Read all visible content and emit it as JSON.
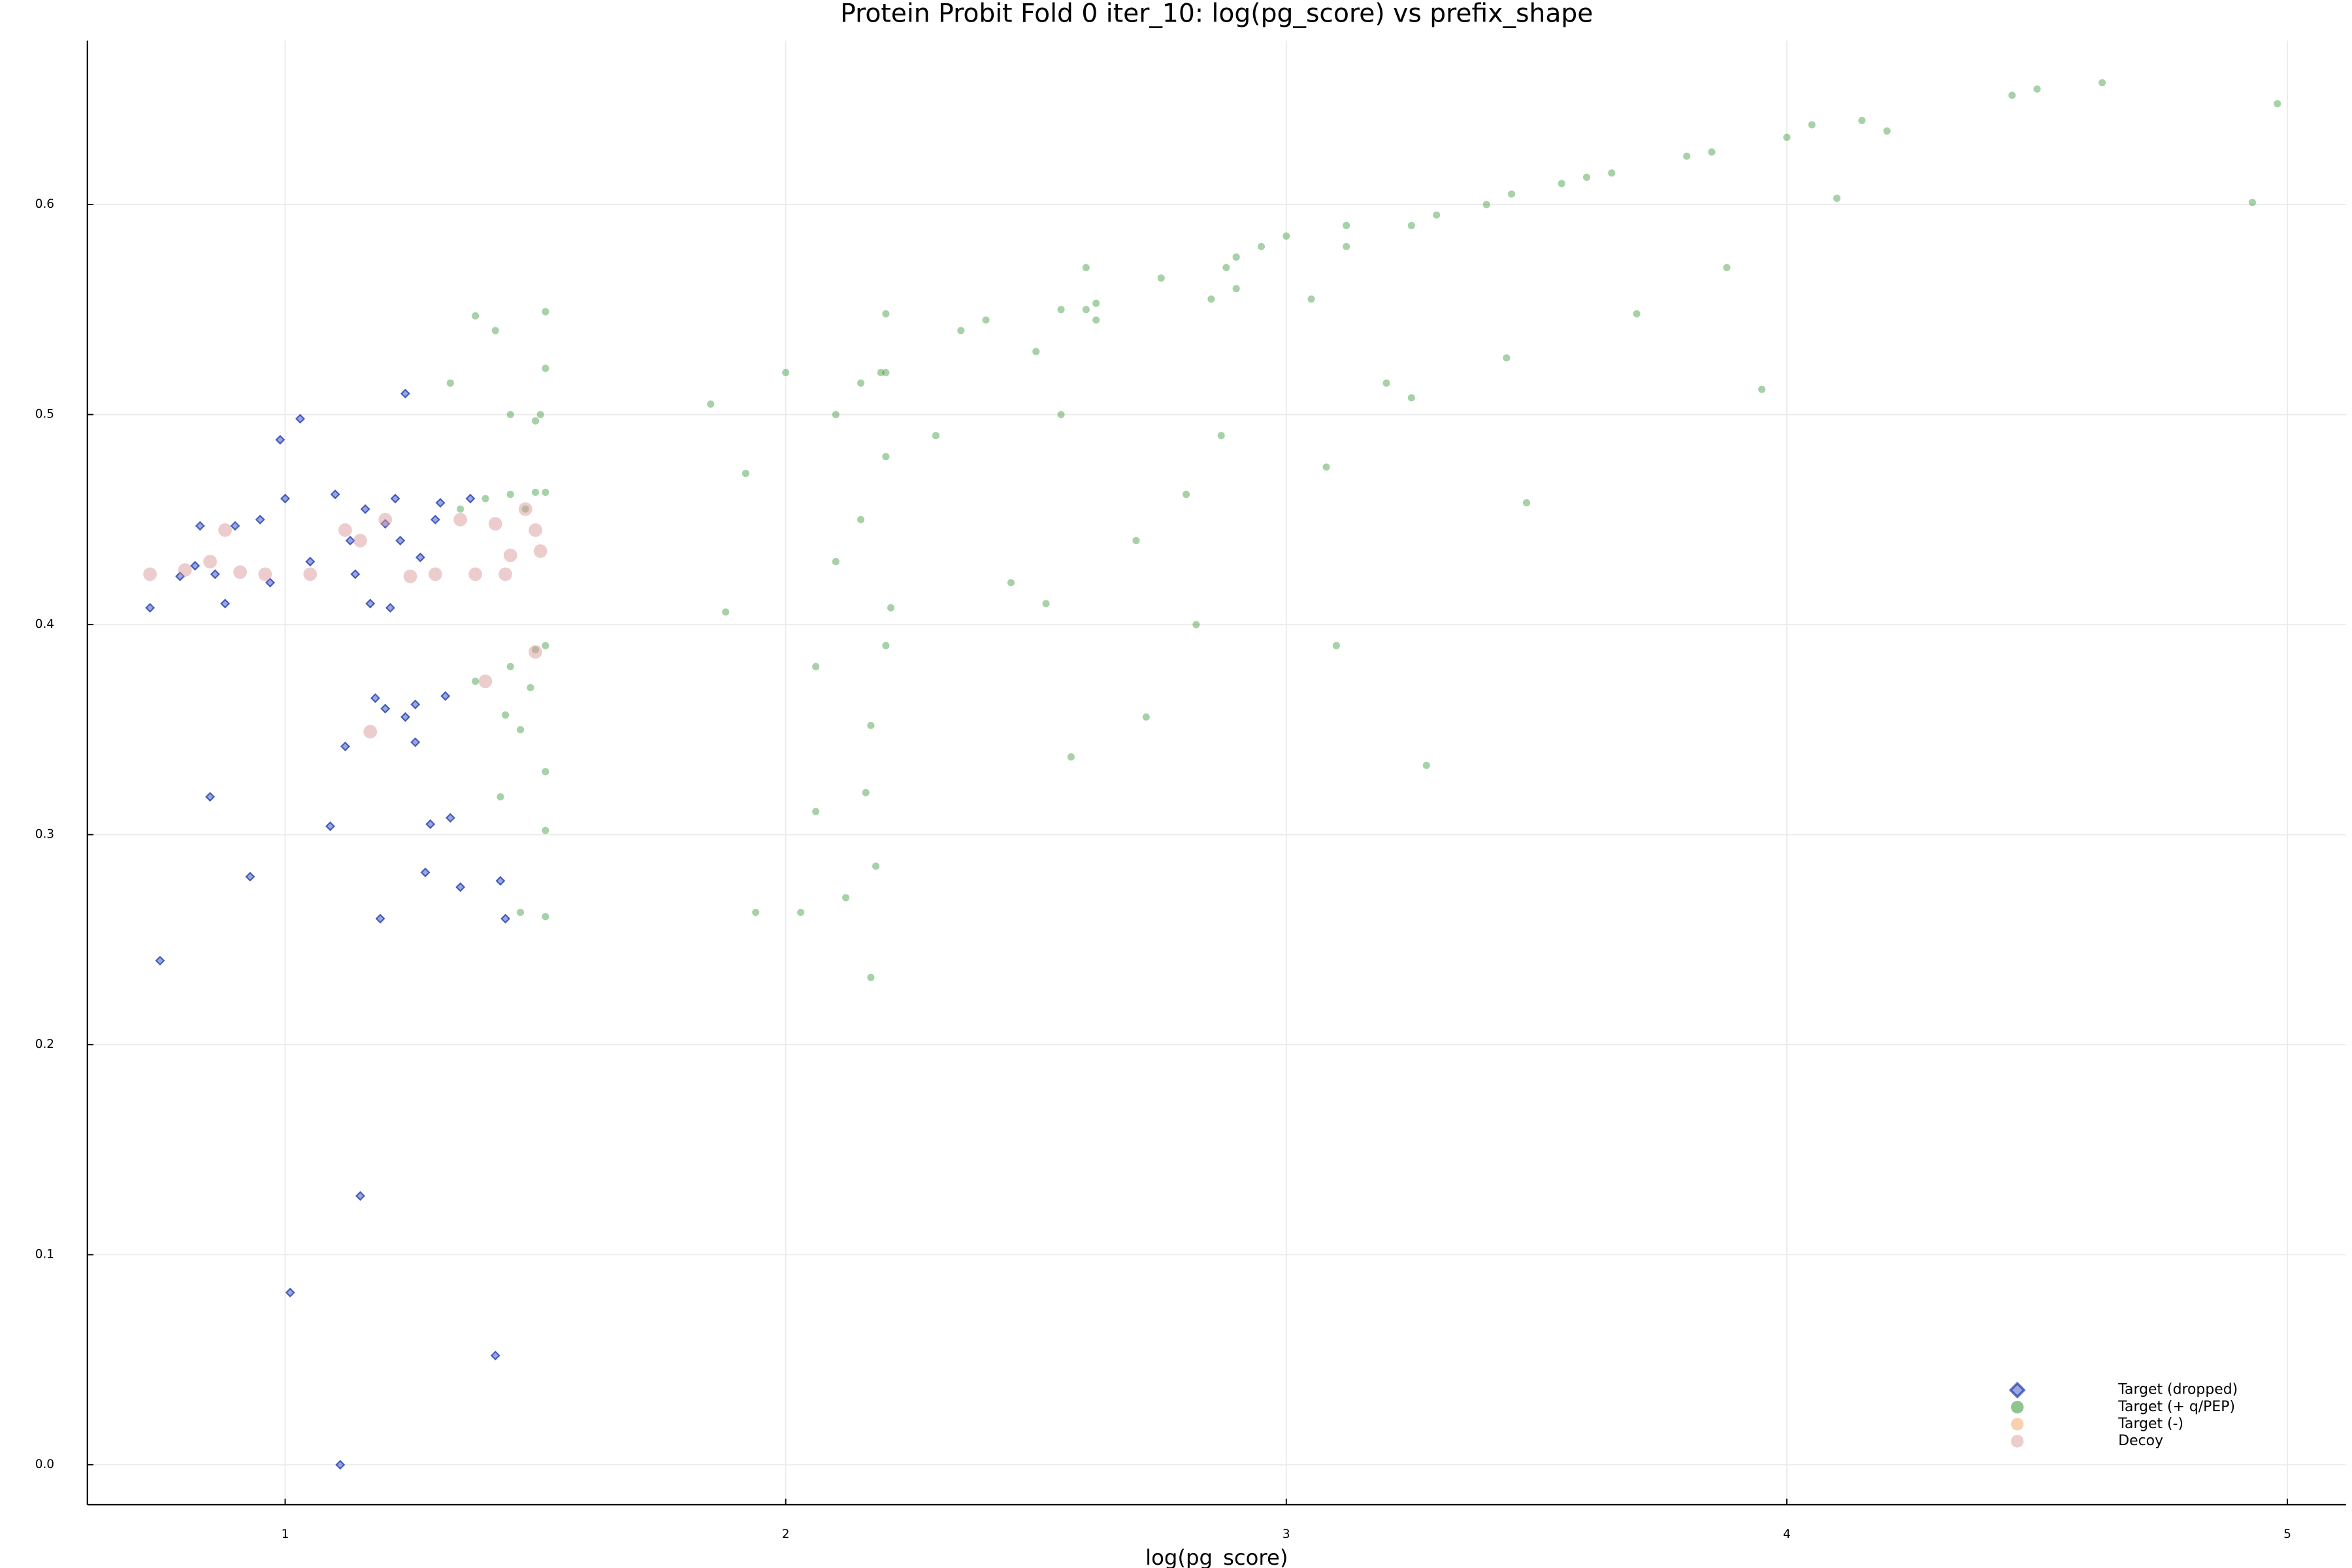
{
  "chart_data": {
    "type": "scatter",
    "title": "Protein Probit Fold 0 iter_10: log(pg_score) vs prefix_shape",
    "x_label": "log(pg_score)",
    "xlim": [
      0.605,
      5.117
    ],
    "ylim": [
      -0.019,
      0.678
    ],
    "xticks": [
      1,
      2,
      3,
      4,
      5
    ],
    "yticks": [
      {
        "value": 0,
        "label": "0.0"
      },
      0.1,
      0.2,
      0.3,
      0.4,
      0.5,
      0.6
    ],
    "grid": true,
    "legend": "bottom-right",
    "series": [
      {
        "name": "Target (dropped)",
        "color": "#1f3bb3",
        "marker": "diamond",
        "x": [
          0.73,
          0.75,
          0.79,
          0.82,
          0.83,
          0.85,
          0.86,
          0.88,
          0.9,
          0.93,
          0.95,
          0.97,
          0.99,
          1.01,
          1.03,
          1.0,
          1.05,
          1.09,
          1.1,
          1.11,
          1.12,
          1.13,
          1.15,
          1.16,
          1.18,
          1.19,
          1.2,
          1.22,
          1.24,
          1.24,
          1.26,
          1.27,
          1.28,
          1.29,
          1.3,
          1.32,
          1.33,
          1.35,
          1.37,
          1.42,
          1.43,
          1.44,
          1.2,
          1.26,
          1.14,
          1.31,
          1.23,
          1.17,
          1.21
        ],
        "y": [
          0.408,
          0.24,
          0.423,
          0.428,
          0.447,
          0.318,
          0.424,
          0.41,
          0.447,
          0.28,
          0.45,
          0.42,
          0.488,
          0.082,
          0.498,
          0.46,
          0.43,
          0.304,
          0.462,
          0.0,
          0.342,
          0.44,
          0.128,
          0.455,
          0.365,
          0.26,
          0.448,
          0.46,
          0.356,
          0.51,
          0.344,
          0.432,
          0.282,
          0.305,
          0.45,
          0.366,
          0.308,
          0.275,
          0.46,
          0.052,
          0.278,
          0.26,
          0.36,
          0.362,
          0.424,
          0.458,
          0.44,
          0.41,
          0.408
        ]
      },
      {
        "name": "Target (+ q/PEP)",
        "color": "#228b22",
        "marker": "circle",
        "x": [
          1.33,
          1.38,
          1.42,
          1.52,
          1.52,
          1.51,
          1.5,
          1.45,
          1.4,
          1.45,
          1.5,
          1.52,
          1.35,
          1.48,
          1.38,
          1.45,
          1.5,
          1.52,
          1.49,
          1.44,
          1.47,
          1.43,
          1.52,
          1.47,
          1.52,
          1.52,
          1.85,
          1.88,
          1.92,
          1.94,
          2.0,
          2.03,
          2.06,
          2.06,
          2.1,
          2.12,
          2.15,
          2.16,
          2.17,
          2.18,
          2.17,
          2.2,
          2.2,
          2.2,
          2.21,
          2.2,
          2.19,
          2.15,
          2.1,
          2.3,
          2.35,
          2.4,
          2.45,
          2.5,
          2.55,
          2.57,
          2.6,
          2.62,
          2.6,
          2.62,
          2.55,
          2.52,
          2.7,
          2.72,
          2.75,
          2.8,
          2.82,
          2.85,
          2.88,
          2.9,
          2.87,
          2.9,
          2.95,
          3.0,
          3.05,
          3.08,
          3.1,
          3.12,
          3.12,
          3.2,
          3.25,
          3.3,
          3.28,
          3.25,
          3.4,
          3.45,
          3.44,
          3.48,
          3.55,
          3.6,
          3.65,
          3.7,
          3.8,
          3.85,
          3.88,
          3.95,
          4.0,
          4.05,
          4.1,
          4.15,
          4.2,
          4.45,
          4.5,
          4.63,
          4.93,
          4.98
        ],
        "y": [
          0.515,
          0.547,
          0.54,
          0.549,
          0.522,
          0.5,
          0.497,
          0.5,
          0.46,
          0.462,
          0.463,
          0.463,
          0.455,
          0.455,
          0.373,
          0.38,
          0.388,
          0.39,
          0.37,
          0.357,
          0.35,
          0.318,
          0.302,
          0.263,
          0.261,
          0.33,
          0.505,
          0.406,
          0.472,
          0.263,
          0.52,
          0.263,
          0.38,
          0.311,
          0.5,
          0.27,
          0.515,
          0.32,
          0.352,
          0.285,
          0.232,
          0.52,
          0.548,
          0.48,
          0.408,
          0.39,
          0.52,
          0.45,
          0.43,
          0.49,
          0.54,
          0.545,
          0.42,
          0.53,
          0.55,
          0.337,
          0.55,
          0.553,
          0.57,
          0.545,
          0.5,
          0.41,
          0.44,
          0.356,
          0.565,
          0.462,
          0.4,
          0.555,
          0.57,
          0.575,
          0.49,
          0.56,
          0.58,
          0.585,
          0.555,
          0.475,
          0.39,
          0.59,
          0.58,
          0.515,
          0.59,
          0.595,
          0.333,
          0.508,
          0.6,
          0.605,
          0.527,
          0.458,
          0.61,
          0.613,
          0.615,
          0.548,
          0.623,
          0.625,
          0.57,
          0.512,
          0.632,
          0.638,
          0.603,
          0.64,
          0.635,
          0.652,
          0.655,
          0.658,
          0.601,
          0.648
        ]
      },
      {
        "name": "Target (-)",
        "color": "#f4a460",
        "marker": "circle",
        "x": [],
        "y": []
      },
      {
        "name": "Decoy",
        "color": "#d99a9a",
        "marker": "circle",
        "x": [
          0.73,
          0.8,
          0.85,
          0.88,
          0.91,
          0.96,
          1.05,
          1.12,
          1.15,
          1.17,
          1.2,
          1.25,
          1.3,
          1.35,
          1.38,
          1.42,
          1.44,
          1.45,
          1.5,
          1.51,
          1.48,
          1.4,
          1.5
        ],
        "y": [
          0.424,
          0.426,
          0.43,
          0.445,
          0.425,
          0.424,
          0.424,
          0.445,
          0.44,
          0.349,
          0.45,
          0.423,
          0.424,
          0.45,
          0.424,
          0.448,
          0.424,
          0.433,
          0.445,
          0.435,
          0.455,
          0.373,
          0.387
        ]
      }
    ]
  }
}
